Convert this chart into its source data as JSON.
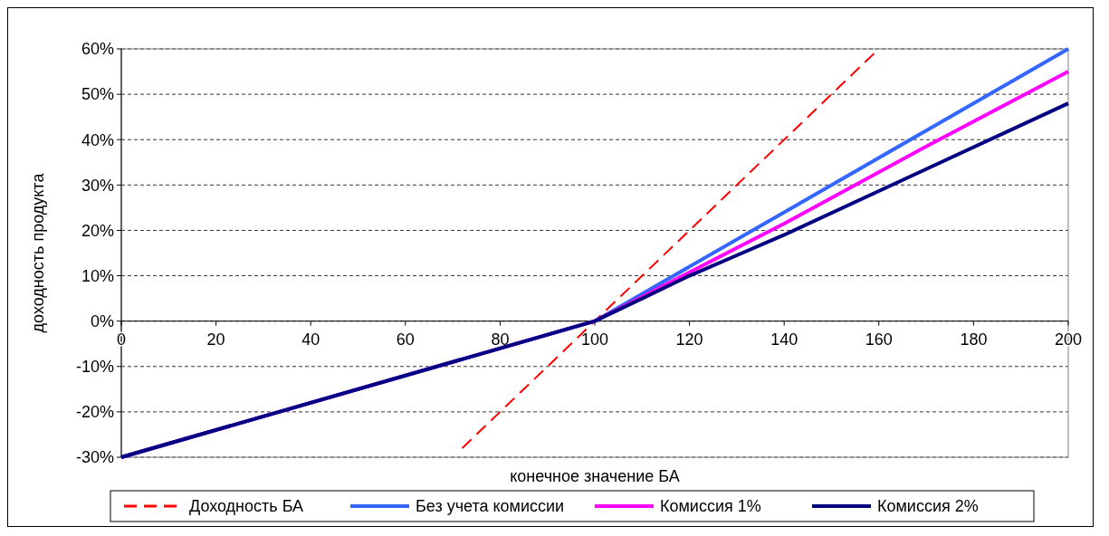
{
  "chart_data": {
    "type": "line",
    "xlabel": "конечное значение БА",
    "ylabel": "доходность продукта",
    "xlim": [
      0,
      200
    ],
    "xticks": [
      0,
      20,
      40,
      60,
      80,
      100,
      120,
      140,
      160,
      180,
      200
    ],
    "ylim": [
      -30,
      60
    ],
    "yticks": [
      {
        "value": -30,
        "label": "-30%"
      },
      {
        "value": -20,
        "label": "-20%"
      },
      {
        "value": -10,
        "label": "-10%"
      },
      {
        "value": 0,
        "label": "0%"
      },
      {
        "value": 10,
        "label": "10%"
      },
      {
        "value": 20,
        "label": "20%"
      },
      {
        "value": 30,
        "label": "30%"
      },
      {
        "value": 40,
        "label": "40%"
      },
      {
        "value": 50,
        "label": "50%"
      },
      {
        "value": 60,
        "label": "60%"
      }
    ],
    "grid": "y",
    "legend": "bottom",
    "series": [
      {
        "name": "Доходность БА",
        "color": "#ff0000",
        "line_style": "dashed",
        "x": [
          72,
          160
        ],
        "values": [
          -28,
          60
        ]
      },
      {
        "name": "Без учета комиссии",
        "color": "#3366ff",
        "line_style": "solid",
        "x": [
          0,
          100,
          140,
          170,
          200
        ],
        "values": [
          -30,
          0,
          24,
          42,
          60
        ]
      },
      {
        "name": "Комиссия 1%",
        "color": "#ff00ff",
        "line_style": "solid",
        "x": [
          0,
          100,
          140,
          170,
          200
        ],
        "values": [
          -30,
          0,
          21.5,
          38.5,
          55
        ]
      },
      {
        "name": "Комиссия 2%",
        "color": "#000080",
        "line_style": "solid",
        "x": [
          0,
          100,
          110,
          120,
          130,
          140,
          170,
          200
        ],
        "values": [
          -30,
          0,
          5,
          10,
          14.5,
          19,
          33.5,
          48
        ]
      }
    ]
  }
}
